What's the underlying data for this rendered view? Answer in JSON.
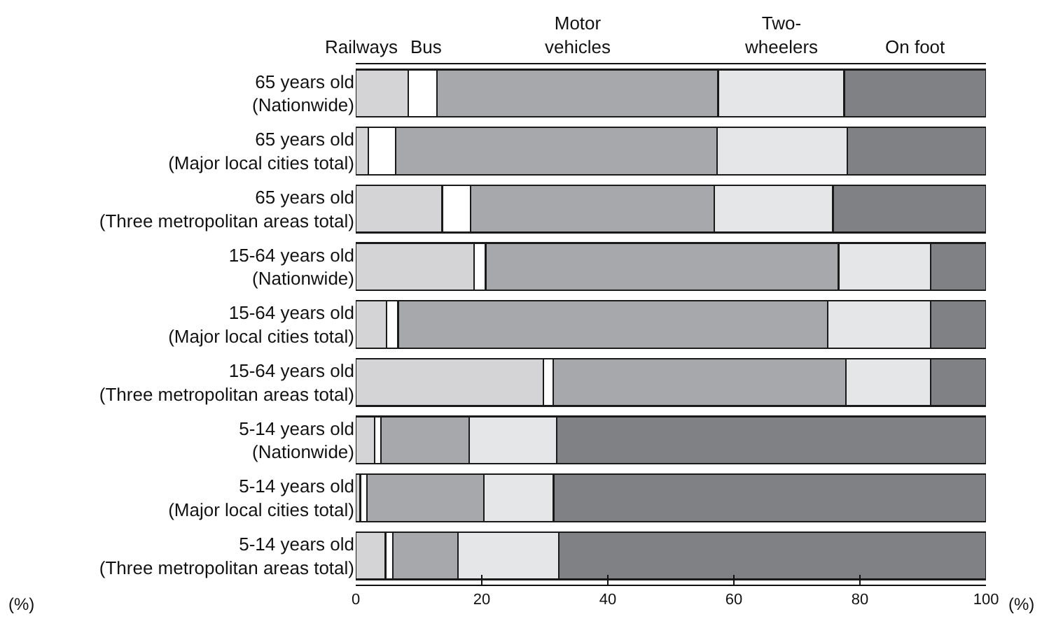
{
  "chart_data": {
    "type": "bar",
    "orientation": "horizontal",
    "stacked": true,
    "categories": [
      "65 years old\n(Nationwide)",
      "65 years old\n(Major local cities total)",
      "65 years old\n(Three metropolitan areas total)",
      "15-64 years old\n(Nationwide)",
      "15-64 years old\n(Major local cities total)",
      "15-64 years old\n(Three metropolitan areas total)",
      "5-14 years old\n(Nationwide)",
      "5-14 years old\n(Major local cities total)",
      "5-14 years old\n(Three metropolitan areas total)"
    ],
    "series": [
      {
        "name": "Railways",
        "color": "#d4d4d6",
        "values": [
          8.3,
          2.0,
          13.7,
          18.8,
          4.9,
          29.8,
          3.0,
          0.7,
          4.7
        ]
      },
      {
        "name": "Bus",
        "color": "#ffffff",
        "values": [
          4.6,
          4.3,
          4.5,
          1.8,
          1.8,
          1.5,
          1.0,
          1.1,
          1.2
        ]
      },
      {
        "name": "Motor\nvehicles",
        "color": "#a7a8ab",
        "values": [
          44.6,
          51.0,
          38.7,
          56.0,
          68.2,
          46.5,
          14.0,
          18.5,
          10.3
        ]
      },
      {
        "name": "Two-\nwheelers",
        "color": "#e5e6e8",
        "values": [
          20.0,
          20.7,
          18.8,
          14.6,
          16.3,
          13.4,
          13.9,
          11.1,
          16.0
        ]
      },
      {
        "name": "On foot",
        "color": "#808184",
        "values": [
          22.5,
          22.0,
          24.3,
          8.8,
          8.8,
          8.8,
          68.1,
          68.6,
          67.8
        ]
      }
    ],
    "xlim": [
      0,
      100
    ],
    "xticks": [
      0,
      20,
      40,
      60,
      80,
      100
    ],
    "xlabel": "(%)",
    "annotations": [
      "(%)"
    ],
    "legend": "top"
  }
}
